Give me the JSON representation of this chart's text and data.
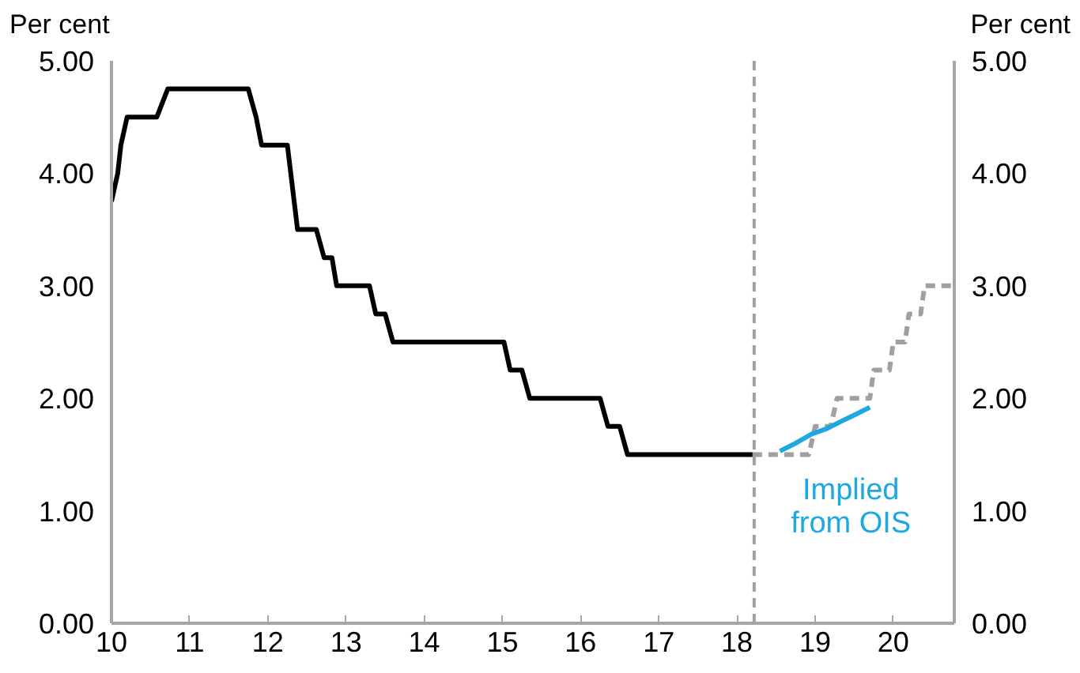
{
  "chart_data": {
    "type": "line",
    "ylabel": "Per cent",
    "y2label": "Per cent",
    "xlim": [
      10,
      20.78
    ],
    "xticks": [
      10,
      11,
      12,
      13,
      14,
      15,
      16,
      17,
      18,
      19,
      20
    ],
    "ylim": [
      0,
      5
    ],
    "yticks": [
      {
        "value": 0,
        "label": "0.00"
      },
      {
        "value": 1,
        "label": "1.00"
      },
      {
        "value": 2,
        "label": "2.00"
      },
      {
        "value": 3,
        "label": "3.00"
      },
      {
        "value": 4,
        "label": "4.00"
      },
      {
        "value": 5,
        "label": "5.00"
      }
    ],
    "y2lim": [
      0,
      5
    ],
    "y2ticks": [
      {
        "value": 0,
        "label": "0.00"
      },
      {
        "value": 1,
        "label": "1.00"
      },
      {
        "value": 2,
        "label": "2.00"
      },
      {
        "value": 3,
        "label": "3.00"
      },
      {
        "value": 4,
        "label": "4.00"
      },
      {
        "value": 5,
        "label": "5.00"
      }
    ],
    "grid": false,
    "legend": false,
    "marker": "none",
    "line_style": "solid",
    "series": [
      {
        "color": "#000000",
        "x": [
          10.0,
          10.08,
          10.12,
          10.2,
          10.58,
          10.72,
          11.75,
          11.85,
          11.92,
          12.25,
          12.38,
          12.62,
          12.72,
          12.82,
          12.88,
          13.3,
          13.38,
          13.5,
          13.6,
          15.02,
          15.1,
          15.25,
          15.35,
          16.25,
          16.35,
          16.5,
          16.6,
          18.2
        ],
        "values": [
          3.75,
          4.0,
          4.25,
          4.5,
          4.5,
          4.75,
          4.75,
          4.5,
          4.25,
          4.25,
          3.5,
          3.5,
          3.25,
          3.25,
          3.0,
          3.0,
          2.75,
          2.75,
          2.5,
          2.5,
          2.25,
          2.25,
          2.0,
          2.0,
          1.75,
          1.75,
          1.5,
          1.5
        ]
      },
      {
        "color": "#a0a0a0",
        "line_style": "dashed",
        "x": [
          18.2,
          18.92,
          19.0,
          19.2,
          19.28,
          19.7,
          19.75,
          19.95,
          20.0,
          20.15,
          20.2,
          20.35,
          20.4,
          20.78
        ],
        "values": [
          1.5,
          1.5,
          1.75,
          1.75,
          2.0,
          2.0,
          2.25,
          2.25,
          2.5,
          2.5,
          2.75,
          2.75,
          3.0,
          3.0
        ]
      },
      {
        "name": "Implied from OIS",
        "color": "#1ea8e0",
        "x": [
          18.55,
          18.75,
          18.95,
          19.15,
          19.35,
          19.5,
          19.7
        ],
        "values": [
          1.53,
          1.6,
          1.68,
          1.73,
          1.8,
          1.85,
          1.92
        ]
      }
    ],
    "ref_lines": [
      {
        "axis": "x",
        "value": 18.22,
        "color": "#a0a0a0",
        "line_style": "dashed"
      }
    ]
  }
}
